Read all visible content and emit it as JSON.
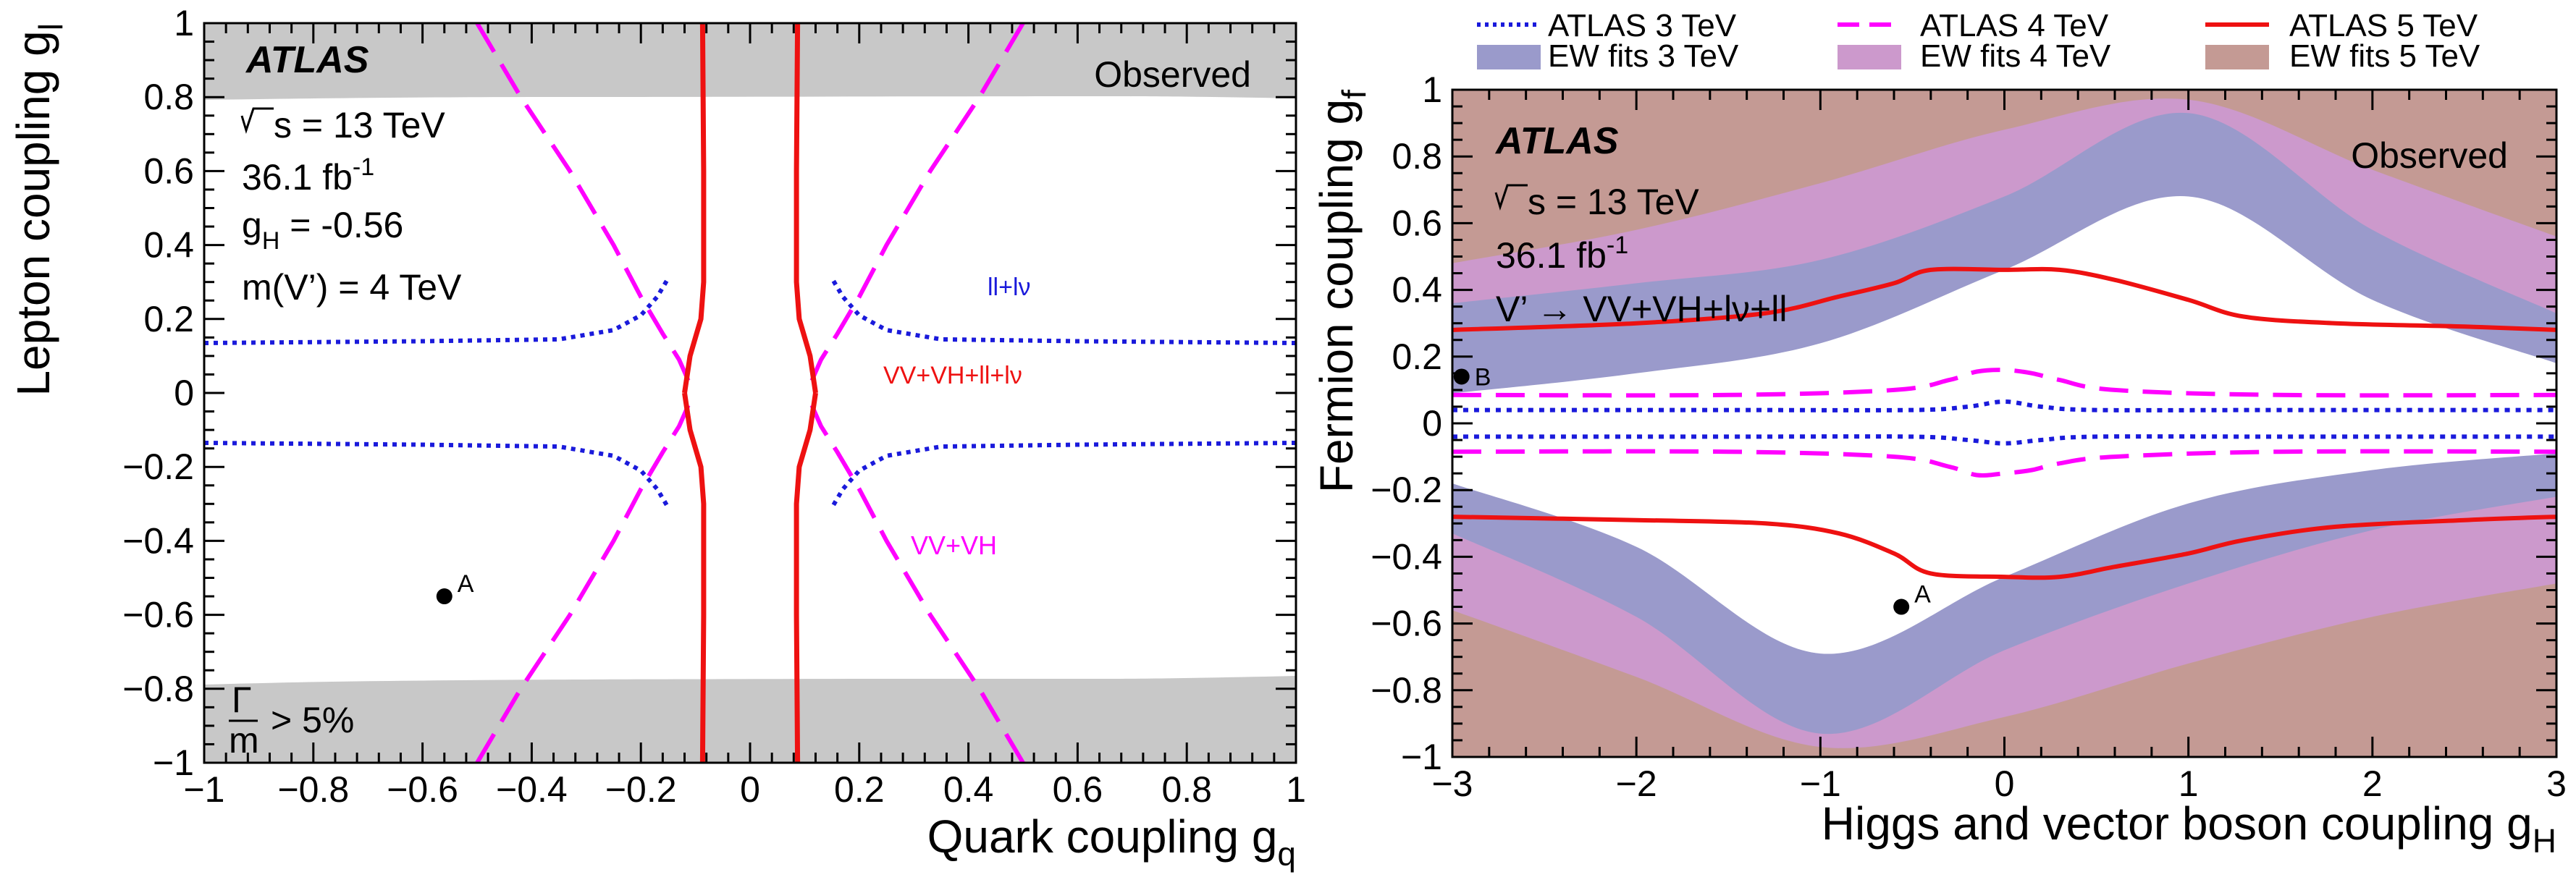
{
  "chart_data": [
    {
      "type": "line",
      "experiment": "ATLAS",
      "observed_label": "Observed",
      "xlabel": "Quark coupling g",
      "xlabel_sub": "q",
      "ylabel": "Lepton coupling g",
      "ylabel_sub": "l",
      "xlim": [
        -1,
        1
      ],
      "ylim": [
        -1,
        1
      ],
      "xticks": [
        "−1",
        "−0.8",
        "−0.6",
        "−0.4",
        "−0.2",
        "0",
        "0.2",
        "0.4",
        "0.6",
        "0.8",
        "1"
      ],
      "yticks": [
        "1",
        "0.8",
        "0.6",
        "0.4",
        "0.2",
        "0",
        "−0.2",
        "−0.4",
        "−0.6",
        "−0.8",
        "−1"
      ],
      "info": {
        "sqrt_s": "s = 13 TeV",
        "lumi": "36.1 fb",
        "lumi_sup": "-1",
        "gh_pre": "g",
        "gh_sub": "H",
        "gh_post": " = -0.56",
        "mass": "m(V’) = 4 TeV"
      },
      "width_note": {
        "numerator": "Γ",
        "denominator": "m",
        "text": "> 5%"
      },
      "width_excluded_bands": [
        {
          "name": "upper",
          "y_range": [
            0.79,
            1.0
          ]
        },
        {
          "name": "lower",
          "y_range": [
            -1.0,
            -0.78
          ]
        }
      ],
      "curve_labels": {
        "leptonic": "ll+lν",
        "combined": "VV+VH+ll+lν",
        "bosonic": "VV+VH"
      },
      "point": {
        "label": "A",
        "x": -0.56,
        "y": -0.55
      },
      "series": [
        {
          "style": "dotted",
          "color": "#1a1adb",
          "label_ref": "ll+lν",
          "x": [
            -1.0,
            -0.6,
            -0.35,
            -0.25,
            -0.2,
            -0.17,
            -0.15
          ],
          "y": [
            0.135,
            0.14,
            0.145,
            0.17,
            0.21,
            0.26,
            0.31
          ]
        },
        {
          "style": "dashed",
          "color": "#ff00ff",
          "label_ref": "VV+VH",
          "x": [
            -0.5,
            -0.42,
            -0.33,
            -0.25,
            -0.2,
            -0.16,
            -0.13,
            -0.115,
            -0.105
          ],
          "y": [
            1.0,
            0.8,
            0.6,
            0.4,
            0.26,
            0.16,
            0.09,
            0.04,
            0.0
          ]
        },
        {
          "style": "solid",
          "color": "#ee1111",
          "label_ref": "VV+VH+ll+lν",
          "x": [
            -0.087,
            -0.085,
            -0.085,
            -0.09,
            -0.1,
            -0.11,
            -0.12
          ],
          "y": [
            1.0,
            0.6,
            0.3,
            0.2,
            0.15,
            0.1,
            0.0
          ]
        }
      ]
    },
    {
      "type": "area",
      "experiment": "ATLAS",
      "observed_label": "Observed",
      "xlabel": "Higgs and vector boson coupling g",
      "xlabel_sub": "H",
      "ylabel": "Fermion coupling g",
      "ylabel_sub": "f",
      "xlim": [
        -3,
        3
      ],
      "ylim": [
        -1,
        1
      ],
      "xticks": [
        "−3",
        "−2",
        "−1",
        "0",
        "1",
        "2",
        "3"
      ],
      "yticks": [
        "1",
        "0.8",
        "0.6",
        "0.4",
        "0.2",
        "0",
        "−0.2",
        "−0.4",
        "−0.6",
        "−0.8",
        "−1"
      ],
      "info": {
        "sqrt_s": "s = 13 TeV",
        "lumi": "36.1 fb",
        "lumi_sup": "-1",
        "process": "V’ → VV+VH+lν+ll"
      },
      "legend": {
        "placement": "top",
        "entries": [
          {
            "label": "ATLAS 3 TeV",
            "style": "dotted",
            "color": "#1a1adb"
          },
          {
            "label": "ATLAS 4 TeV",
            "style": "dashed",
            "color": "#ff00ff"
          },
          {
            "label": "ATLAS 5 TeV",
            "style": "solid",
            "color": "#ee1111"
          },
          {
            "label": "EW fits 3 TeV",
            "style": "fill",
            "color": "#9a9acb"
          },
          {
            "label": "EW fits 4 TeV",
            "style": "fill",
            "color": "#cc99cc"
          },
          {
            "label": "EW fits 5 TeV",
            "style": "fill",
            "color": "#c49a94"
          }
        ]
      },
      "points": [
        {
          "label": "A",
          "x": -0.56,
          "y": -0.55
        },
        {
          "label": "B",
          "x": -2.95,
          "y": 0.14
        }
      ],
      "series": [
        {
          "name": "ATLAS 3 TeV",
          "x": [
            -3,
            -1.5,
            -0.5,
            -0.2,
            0,
            0.2,
            0.5,
            1.5,
            3
          ],
          "y_upper": [
            0.04,
            0.04,
            0.04,
            0.05,
            0.065,
            0.05,
            0.04,
            0.04,
            0.04
          ],
          "y_lower": [
            -0.04,
            -0.04,
            -0.04,
            -0.05,
            -0.06,
            -0.05,
            -0.04,
            -0.04,
            -0.04
          ]
        },
        {
          "name": "ATLAS 4 TeV",
          "x": [
            -3,
            -1.5,
            -0.6,
            -0.3,
            -0.15,
            0,
            0.15,
            0.3,
            0.6,
            1.5,
            3
          ],
          "y_upper": [
            0.085,
            0.085,
            0.1,
            0.13,
            0.155,
            0.16,
            0.15,
            0.13,
            0.1,
            0.085,
            0.085
          ],
          "y_lower": [
            -0.085,
            -0.085,
            -0.1,
            -0.13,
            -0.155,
            -0.15,
            -0.14,
            -0.12,
            -0.1,
            -0.085,
            -0.085
          ]
        },
        {
          "name": "ATLAS 5 TeV",
          "x": [
            -3,
            -2,
            -1.3,
            -0.9,
            -0.6,
            -0.4,
            0,
            0.3,
            0.6,
            1,
            1.3,
            1.8,
            2.5,
            3
          ],
          "y_upper": [
            0.28,
            0.3,
            0.33,
            0.38,
            0.42,
            0.46,
            0.46,
            0.46,
            0.43,
            0.37,
            0.32,
            0.3,
            0.29,
            0.28
          ],
          "y_lower": [
            -0.28,
            -0.29,
            -0.3,
            -0.33,
            -0.39,
            -0.45,
            -0.46,
            -0.46,
            -0.43,
            -0.39,
            -0.35,
            -0.31,
            -0.29,
            -0.28
          ]
        },
        {
          "name": "EW fits 3 TeV",
          "x": [
            -3,
            -2,
            -1,
            0,
            1,
            2,
            3
          ],
          "y_upper_hi": [
            0.36,
            0.42,
            0.49,
            0.68,
            0.93,
            0.58,
            0.33
          ],
          "y_upper_lo": [
            0.09,
            0.15,
            0.24,
            0.46,
            0.68,
            0.37,
            0.18
          ],
          "y_lower_hi": [
            -0.18,
            -0.37,
            -0.69,
            -0.46,
            -0.24,
            -0.14,
            -0.09
          ],
          "y_lower_lo": [
            -0.33,
            -0.58,
            -0.93,
            -0.68,
            -0.48,
            -0.32,
            -0.22
          ]
        },
        {
          "name": "EW fits 4 TeV",
          "x": [
            -3,
            -2,
            -1,
            0,
            1,
            2,
            3
          ],
          "y_upper_hi": [
            0.48,
            0.58,
            0.72,
            0.88,
            0.97,
            0.76,
            0.56
          ],
          "y_upper_lo": [
            0.11,
            0.16,
            0.26,
            0.48,
            0.7,
            0.38,
            0.2
          ],
          "y_lower_hi": [
            -0.2,
            -0.38,
            -0.7,
            -0.48,
            -0.26,
            -0.16,
            -0.11
          ],
          "y_lower_lo": [
            -0.56,
            -0.76,
            -0.97,
            -0.88,
            -0.72,
            -0.58,
            -0.48
          ]
        }
      ]
    }
  ]
}
